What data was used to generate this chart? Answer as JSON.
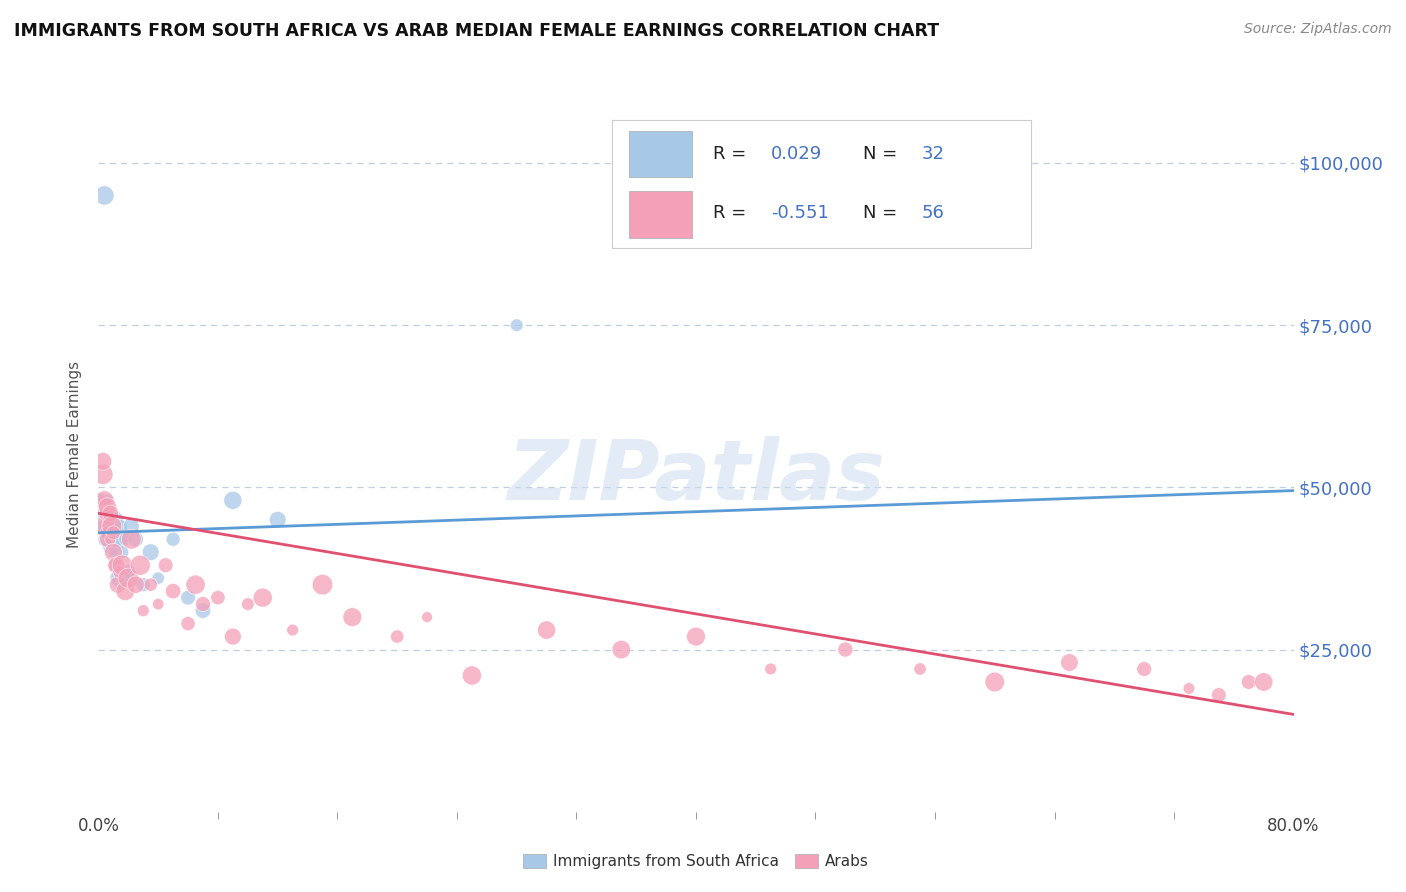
{
  "title": "IMMIGRANTS FROM SOUTH AFRICA VS ARAB MEDIAN FEMALE EARNINGS CORRELATION CHART",
  "source": "Source: ZipAtlas.com",
  "ylabel": "Median Female Earnings",
  "xlim": [
    0.0,
    0.8
  ],
  "ylim": [
    0,
    110000
  ],
  "yticks": [
    25000,
    50000,
    75000,
    100000
  ],
  "ytick_labels": [
    "$25,000",
    "$50,000",
    "$75,000",
    "$100,000"
  ],
  "xtick_labels": [
    "0.0%",
    "80.0%"
  ],
  "blue_color": "#a8c8e8",
  "pink_color": "#f4a0b8",
  "blue_line_color": "#5b9bd5",
  "pink_line_color": "#e05070",
  "blue_scatter_x": [
    0.002,
    0.004,
    0.005,
    0.006,
    0.006,
    0.007,
    0.008,
    0.009,
    0.01,
    0.011,
    0.012,
    0.013,
    0.014,
    0.015,
    0.016,
    0.018,
    0.02,
    0.022,
    0.025,
    0.03,
    0.035,
    0.04,
    0.05,
    0.06,
    0.07,
    0.09,
    0.003,
    0.005,
    0.007,
    0.01,
    0.12,
    0.28
  ],
  "blue_scatter_y": [
    48000,
    95000,
    46000,
    44000,
    48000,
    43000,
    46000,
    41000,
    43000,
    45000,
    38000,
    42000,
    36000,
    44000,
    40000,
    42000,
    37000,
    44000,
    42000,
    35000,
    40000,
    36000,
    42000,
    33000,
    31000,
    48000,
    44000,
    42000,
    45000,
    40000,
    45000,
    75000
  ],
  "pink_scatter_x": [
    0.002,
    0.003,
    0.004,
    0.004,
    0.005,
    0.005,
    0.006,
    0.006,
    0.007,
    0.008,
    0.008,
    0.009,
    0.01,
    0.01,
    0.011,
    0.012,
    0.013,
    0.014,
    0.016,
    0.018,
    0.02,
    0.022,
    0.025,
    0.028,
    0.03,
    0.035,
    0.04,
    0.045,
    0.05,
    0.06,
    0.065,
    0.07,
    0.08,
    0.09,
    0.1,
    0.11,
    0.13,
    0.15,
    0.17,
    0.2,
    0.22,
    0.25,
    0.3,
    0.35,
    0.4,
    0.45,
    0.5,
    0.55,
    0.6,
    0.65,
    0.7,
    0.73,
    0.75,
    0.77,
    0.78,
    0.003
  ],
  "pink_scatter_y": [
    48000,
    52000,
    44000,
    48000,
    46000,
    43000,
    47000,
    42000,
    45000,
    46000,
    42000,
    44000,
    43000,
    40000,
    38000,
    38000,
    35000,
    37000,
    38000,
    34000,
    36000,
    42000,
    35000,
    38000,
    31000,
    35000,
    32000,
    38000,
    34000,
    29000,
    35000,
    32000,
    33000,
    27000,
    32000,
    33000,
    28000,
    35000,
    30000,
    27000,
    30000,
    21000,
    28000,
    25000,
    27000,
    22000,
    25000,
    22000,
    20000,
    23000,
    22000,
    19000,
    18000,
    20000,
    20000,
    54000
  ],
  "blue_line_x": [
    0.0,
    0.8
  ],
  "blue_line_y": [
    43000,
    49500
  ],
  "pink_line_x": [
    0.0,
    0.8
  ],
  "pink_line_y": [
    46000,
    15000
  ],
  "watermark_text": "ZIPatlas",
  "grid_color": "#c0cfe0",
  "legend_R1": "R = ",
  "legend_V1": "0.029",
  "legend_N1_label": "  N = ",
  "legend_N1": "32",
  "legend_R2": "R = ",
  "legend_V2": "-0.551",
  "legend_N2_label": "  N = ",
  "legend_N2": "56"
}
